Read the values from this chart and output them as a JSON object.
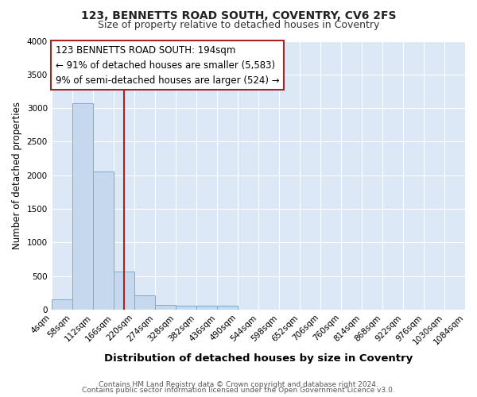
{
  "title1": "123, BENNETTS ROAD SOUTH, COVENTRY, CV6 2FS",
  "title2": "Size of property relative to detached houses in Coventry",
  "xlabel": "Distribution of detached houses by size in Coventry",
  "ylabel": "Number of detached properties",
  "bins": [
    4,
    58,
    112,
    166,
    220,
    274,
    328,
    382,
    436,
    490,
    544,
    598,
    652,
    706,
    760,
    814,
    868,
    922,
    976,
    1030,
    1084
  ],
  "counts": [
    150,
    3070,
    2060,
    565,
    210,
    75,
    55,
    55,
    55,
    0,
    0,
    0,
    0,
    0,
    0,
    0,
    0,
    0,
    0,
    0
  ],
  "bar_color": "#c5d8ed",
  "bar_edge_color": "#7aadcf",
  "property_size": 194,
  "red_line_color": "#aa2222",
  "annotation_line1": "123 BENNETTS ROAD SOUTH: 194sqm",
  "annotation_line2": "← 91% of detached houses are smaller (5,583)",
  "annotation_line3": "9% of semi-detached houses are larger (524) →",
  "annotation_box_color": "#ffffff",
  "annotation_box_edge": "#aa2222",
  "ylim": [
    0,
    4000
  ],
  "yticks": [
    0,
    500,
    1000,
    1500,
    2000,
    2500,
    3000,
    3500,
    4000
  ],
  "background_color": "#dce8f5",
  "grid_color": "#ffffff",
  "fig_bg_color": "#ffffff",
  "footer1": "Contains HM Land Registry data © Crown copyright and database right 2024.",
  "footer2": "Contains public sector information licensed under the Open Government Licence v3.0.",
  "title1_fontsize": 10,
  "title2_fontsize": 9,
  "xlabel_fontsize": 9.5,
  "ylabel_fontsize": 8.5,
  "tick_fontsize": 7.5,
  "annotation_fontsize": 8.5,
  "footer_fontsize": 6.5
}
